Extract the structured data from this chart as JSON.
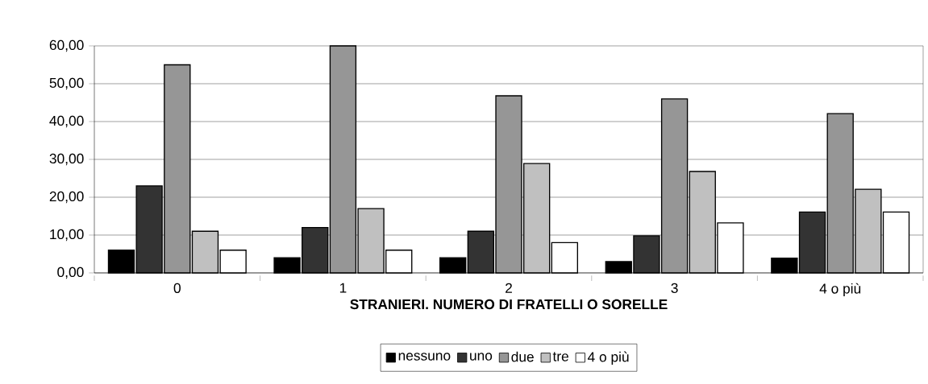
{
  "chart_data": {
    "type": "bar",
    "xlabel": "STRANIERI. NUMERO DI FRATELLI O SORELLE",
    "categories": [
      "0",
      "1",
      "2",
      "3",
      "4 o più"
    ],
    "series": [
      {
        "name": "nessuno",
        "color": "#000000",
        "values": [
          6,
          4,
          4,
          3,
          3.9
        ]
      },
      {
        "name": "uno",
        "color": "#333333",
        "values": [
          23,
          12,
          11,
          9.8,
          16.1
        ]
      },
      {
        "name": "due",
        "color": "#969696",
        "values": [
          55,
          60,
          46.8,
          46,
          42.1
        ]
      },
      {
        "name": "tre",
        "color": "#c0c0c0",
        "values": [
          11,
          17,
          28.9,
          26.8,
          22.1
        ]
      },
      {
        "name": "4 o più",
        "color": "#ffffff",
        "values": [
          6,
          6,
          8,
          13.2,
          16.1
        ]
      }
    ],
    "ylim": [
      0,
      60
    ],
    "yticks": [
      {
        "value": 0,
        "label": "0,00"
      },
      {
        "value": 10,
        "label": "10,00"
      },
      {
        "value": 20,
        "label": "20,00"
      },
      {
        "value": 30,
        "label": "30,00"
      },
      {
        "value": 40,
        "label": "40,00"
      },
      {
        "value": 50,
        "label": "50,00"
      },
      {
        "value": 60,
        "label": "60,00"
      }
    ],
    "grid": "y",
    "legend": "bottom"
  }
}
